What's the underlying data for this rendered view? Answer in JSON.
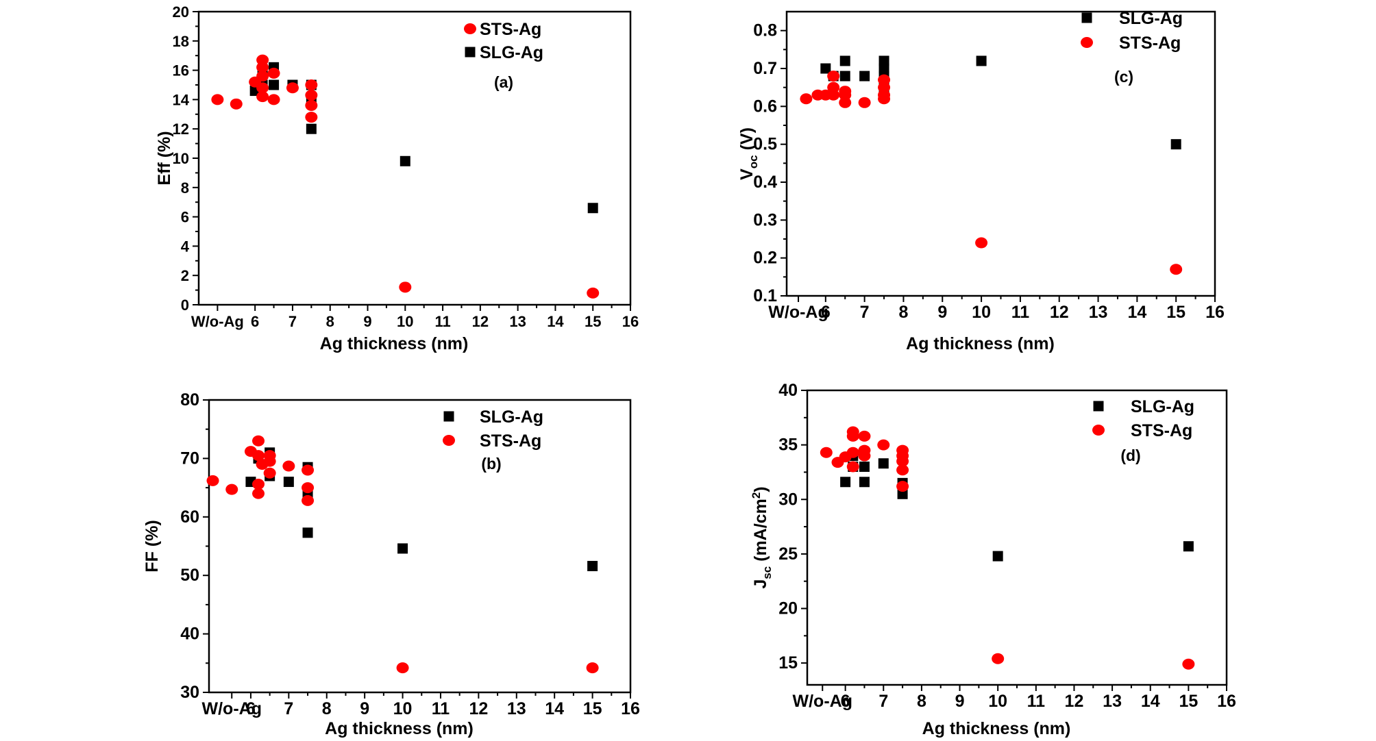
{
  "figure": {
    "domain": "Chart",
    "colors": {
      "STS-Ag": "#ff0000",
      "SLG-Ag": "#000000"
    }
  },
  "chart_data": [
    {
      "id": "a",
      "type": "scatter",
      "panel_label": "(a)",
      "xlabel": "Ag thickness (nm)",
      "ylabel": "Eff (%)",
      "xlim": [
        4.5,
        16
      ],
      "ylim": [
        0,
        20
      ],
      "xticks": [
        5,
        6,
        7,
        8,
        9,
        10,
        11,
        12,
        13,
        14,
        15,
        16
      ],
      "xticklabels": [
        "W/o-Ag",
        "6",
        "7",
        "8",
        "9",
        "10",
        "11",
        "12",
        "13",
        "14",
        "15",
        "16"
      ],
      "yticks": [
        0,
        2,
        4,
        6,
        8,
        10,
        12,
        14,
        16,
        18,
        20
      ],
      "legend": {
        "placement": "top-right",
        "order": [
          "STS-Ag",
          "SLG-Ag"
        ]
      },
      "series": [
        {
          "name": "SLG-Ag",
          "marker": "square",
          "color": "#000000",
          "x": [
            6,
            6.2,
            6.2,
            6.5,
            6.5,
            7,
            7.5,
            7.5,
            7.5,
            10,
            15
          ],
          "y": [
            14.6,
            15.0,
            16.0,
            16.2,
            15.0,
            15.0,
            15.0,
            14.0,
            12.0,
            9.8,
            6.6
          ]
        },
        {
          "name": "STS-Ag",
          "marker": "circle",
          "color": "#ff0000",
          "x": [
            5,
            5.5,
            6,
            6.2,
            6.2,
            6.2,
            6.2,
            6.2,
            6.5,
            6.5,
            7,
            7.5,
            7.5,
            7.5,
            7.5,
            10,
            15
          ],
          "y": [
            14.0,
            13.7,
            15.2,
            16.7,
            16.2,
            15.6,
            14.8,
            14.2,
            15.8,
            14.0,
            14.8,
            15.0,
            14.3,
            13.6,
            12.8,
            1.2,
            0.8
          ]
        }
      ]
    },
    {
      "id": "c",
      "type": "scatter",
      "panel_label": "(c)",
      "xlabel": "Ag thickness (nm)",
      "ylabel_main": "V",
      "ylabel_sub": "oc",
      "ylabel_unit": " (V)",
      "xlim": [
        5,
        16
      ],
      "ylim": [
        0.1,
        0.85
      ],
      "xticks": [
        5.3,
        6,
        7,
        8,
        9,
        10,
        11,
        12,
        13,
        14,
        15,
        16
      ],
      "xticklabels": [
        "W/o-Ag",
        "6",
        "7",
        "8",
        "9",
        "10",
        "11",
        "12",
        "13",
        "14",
        "15",
        "16"
      ],
      "yticks": [
        0.1,
        0.2,
        0.3,
        0.4,
        0.5,
        0.6,
        0.7,
        0.8
      ],
      "yticklabels": [
        "0.1",
        "0.2",
        "0.3",
        "0.4",
        "0.5",
        "0.6",
        "0.7",
        "0.8"
      ],
      "legend": {
        "placement": "top-right",
        "order": [
          "SLG-Ag",
          "STS-Ag"
        ]
      },
      "series": [
        {
          "name": "SLG-Ag",
          "marker": "square",
          "color": "#000000",
          "x": [
            6,
            6.2,
            6.5,
            6.5,
            7,
            7.5,
            7.5,
            7.5,
            7.5,
            10,
            15
          ],
          "y": [
            0.7,
            0.68,
            0.72,
            0.68,
            0.68,
            0.72,
            0.7,
            0.68,
            0.65,
            0.72,
            0.5
          ]
        },
        {
          "name": "STS-Ag",
          "marker": "circle",
          "color": "#ff0000",
          "x": [
            5.5,
            5.8,
            6,
            6.2,
            6.2,
            6.2,
            6.5,
            6.5,
            6.5,
            7,
            7.5,
            7.5,
            7.5,
            7.5,
            10,
            15
          ],
          "y": [
            0.62,
            0.63,
            0.63,
            0.68,
            0.65,
            0.63,
            0.64,
            0.63,
            0.61,
            0.61,
            0.67,
            0.65,
            0.63,
            0.62,
            0.24,
            0.17
          ]
        }
      ]
    },
    {
      "id": "b",
      "type": "scatter",
      "panel_label": "(b)",
      "xlabel": "Ag thickness (nm)",
      "ylabel": "FF (%)",
      "xlim": [
        4.9,
        16
      ],
      "ylim": [
        30,
        80
      ],
      "xticks": [
        5.5,
        6,
        7,
        8,
        9,
        10,
        11,
        12,
        13,
        14,
        15,
        16
      ],
      "xticklabels": [
        "W/o-Ag",
        "6",
        "7",
        "8",
        "9",
        "10",
        "11",
        "12",
        "13",
        "14",
        "15",
        "16"
      ],
      "yticks": [
        30,
        40,
        50,
        60,
        70,
        80
      ],
      "legend": {
        "placement": "top-right",
        "order": [
          "SLG-Ag",
          "STS-Ag"
        ]
      },
      "series": [
        {
          "name": "SLG-Ag",
          "marker": "square",
          "color": "#000000",
          "x": [
            6,
            6.2,
            6.5,
            6.5,
            7,
            7.5,
            7.5,
            7.5,
            10,
            15
          ],
          "y": [
            66,
            70,
            71,
            67,
            66,
            68.5,
            64,
            57.3,
            54.6,
            51.6
          ]
        },
        {
          "name": "STS-Ag",
          "marker": "circle",
          "color": "#ff0000",
          "x": [
            5,
            5.5,
            6,
            6.2,
            6.2,
            6.2,
            6.2,
            6.3,
            6.5,
            6.5,
            6.5,
            7,
            7.5,
            7.5,
            7.5,
            10,
            15
          ],
          "y": [
            66.2,
            64.7,
            71.2,
            73,
            70.5,
            65.6,
            64,
            69,
            70.5,
            69.5,
            67.5,
            68.7,
            68,
            65,
            62.8,
            34.2,
            34.2
          ]
        }
      ]
    },
    {
      "id": "d",
      "type": "scatter",
      "panel_label": "(d)",
      "xlabel": "Ag thickness (nm)",
      "ylabel_main": "J",
      "ylabel_sub": "sc",
      "ylabel_unit": " (mA/cm",
      "ylabel_sup": "2",
      "ylabel_close": ")",
      "xlim": [
        5,
        16
      ],
      "ylim": [
        13,
        40
      ],
      "xticks": [
        5.4,
        6,
        7,
        8,
        9,
        10,
        11,
        12,
        13,
        14,
        15,
        16
      ],
      "xticklabels": [
        "W/o-Ag",
        "6",
        "7",
        "8",
        "9",
        "10",
        "11",
        "12",
        "13",
        "14",
        "15",
        "16"
      ],
      "yticks": [
        15,
        20,
        25,
        30,
        35,
        40
      ],
      "legend": {
        "placement": "top-right",
        "order": [
          "SLG-Ag",
          "STS-Ag"
        ]
      },
      "series": [
        {
          "name": "SLG-Ag",
          "marker": "square",
          "color": "#000000",
          "x": [
            6,
            6.2,
            6.2,
            6.5,
            6.5,
            7,
            7.5,
            7.5,
            10,
            15
          ],
          "y": [
            31.6,
            33.0,
            34.0,
            33.0,
            31.6,
            33.3,
            31.5,
            30.5,
            24.8,
            25.7
          ]
        },
        {
          "name": "STS-Ag",
          "marker": "circle",
          "color": "#ff0000",
          "x": [
            5.5,
            5.8,
            6,
            6.2,
            6.2,
            6.2,
            6.2,
            6.5,
            6.5,
            6.5,
            7,
            7.5,
            7.5,
            7.5,
            7.5,
            7.5,
            10,
            15
          ],
          "y": [
            34.3,
            33.4,
            33.9,
            36.2,
            35.8,
            34.3,
            33.0,
            35.8,
            34.5,
            34.0,
            35.0,
            34.5,
            34.0,
            33.5,
            32.7,
            31.2,
            15.4,
            14.9
          ]
        }
      ]
    }
  ]
}
